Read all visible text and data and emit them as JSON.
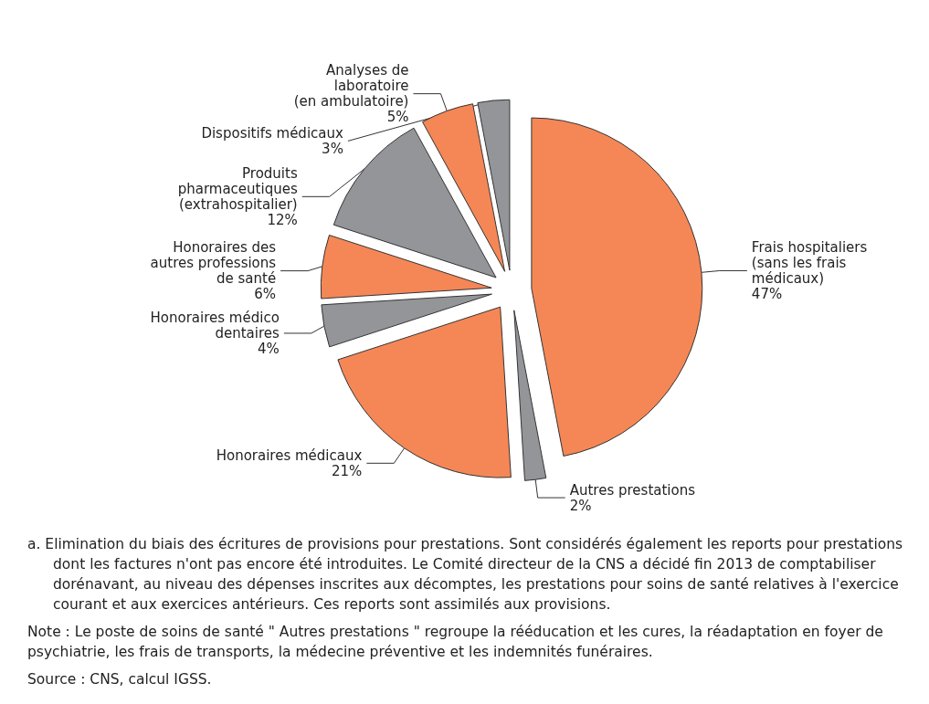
{
  "chart_data": {
    "type": "pie",
    "categories": [
      "Frais hospitaliers\n(sans les frais\nmédicaux)",
      "Autres prestations",
      "Honoraires médicaux",
      "Honoraires médico\ndentaires",
      "Honoraires des\nautres professions\nde santé",
      "Produits\npharmaceutiques\n(extrahospitalier)",
      "Analyses de\nlaboratoire\n(en ambulatoire)",
      "Dispositifs médicaux"
    ],
    "values": [
      47,
      2,
      21,
      4,
      6,
      12,
      5,
      3
    ],
    "value_labels": [
      "47%",
      "2%",
      "21%",
      "4%",
      "6%",
      "12%",
      "5%",
      "3%"
    ],
    "colors": [
      "#f58756",
      "#939598",
      "#f58756",
      "#939598",
      "#f58756",
      "#939598",
      "#f58756",
      "#939598"
    ],
    "annotations": [
      "a.  Elimination du biais des écritures de provisions pour prestations. Sont considérés également les reports pour prestations dont les factures n'ont pas encore été introduites. Le Comité directeur de la CNS a décidé fin 2013 de comptabiliser dorénavant, au niveau des dépenses inscrites aux décomptes, les prestations pour soins de santé relatives à l'exercice courant et aux exercices antérieurs. Ces reports sont assimilés aux provisions.",
      "Note : Le poste de soins de santé  \" Autres prestations \"  regroupe la rééducation et les cures, la réadaptation en foyer de psychiatrie, les frais de transports, la médecine préventive et les indemnités funéraires.",
      "Source : CNS, calcul IGSS."
    ]
  }
}
